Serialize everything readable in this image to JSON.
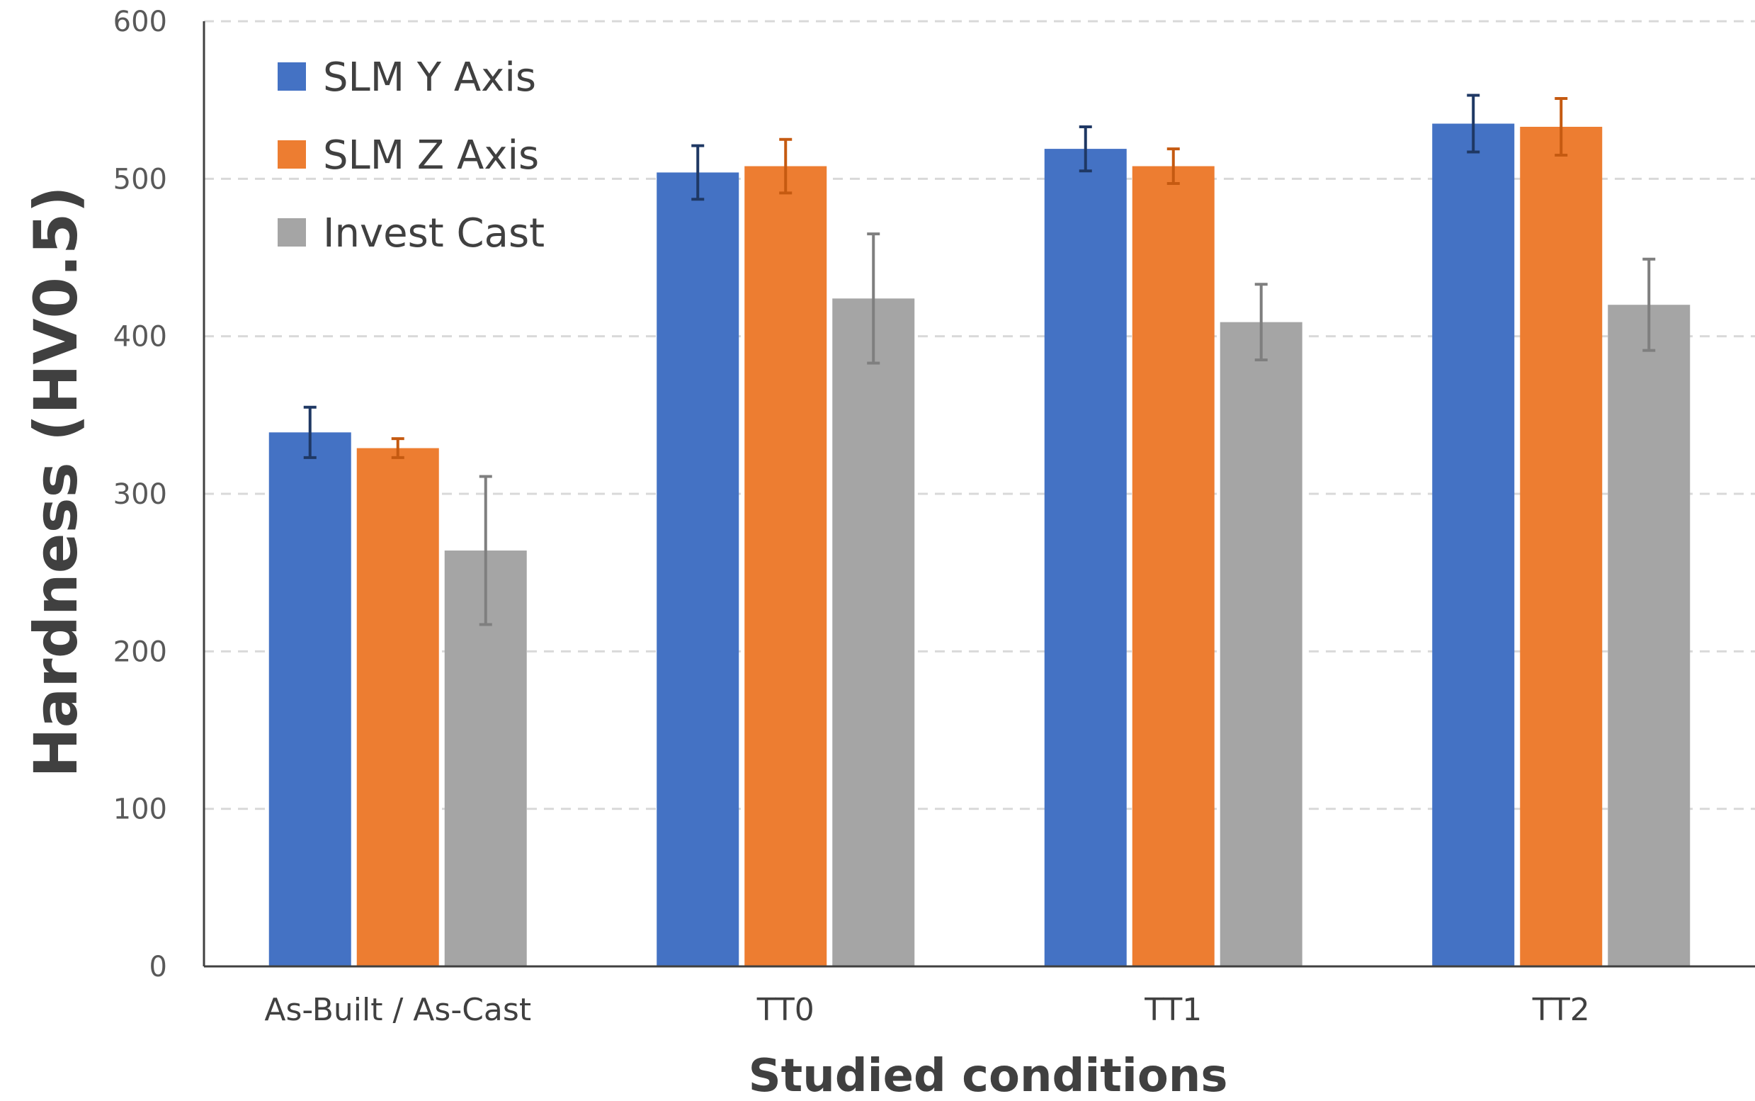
{
  "chart_data": {
    "type": "bar",
    "title": "",
    "xlabel": "Studied conditions",
    "ylabel": "Hardness (HV0.5)",
    "ylim": [
      0,
      600
    ],
    "yticks": [
      0,
      100,
      200,
      300,
      400,
      500,
      600
    ],
    "grid": "horizontal dashed",
    "legend_position": "top-left",
    "categories": [
      "As-Built / As-Cast",
      "TT0",
      "TT1",
      "TT2"
    ],
    "series": [
      {
        "name": "SLM Y Axis",
        "color": "#4472C4",
        "error_color": "#1F3864",
        "values": [
          339,
          504,
          519,
          535
        ],
        "errors": [
          16,
          17,
          14,
          18
        ]
      },
      {
        "name": "SLM Z Axis",
        "color": "#ED7D31",
        "error_color": "#C55A11",
        "values": [
          329,
          508,
          508,
          533
        ],
        "errors": [
          6,
          17,
          11,
          18
        ]
      },
      {
        "name": "Invest Cast",
        "color": "#A5A5A5",
        "error_color": "#7F7F7F",
        "values": [
          264,
          424,
          409,
          420
        ],
        "errors": [
          47,
          41,
          24,
          29
        ]
      }
    ]
  }
}
